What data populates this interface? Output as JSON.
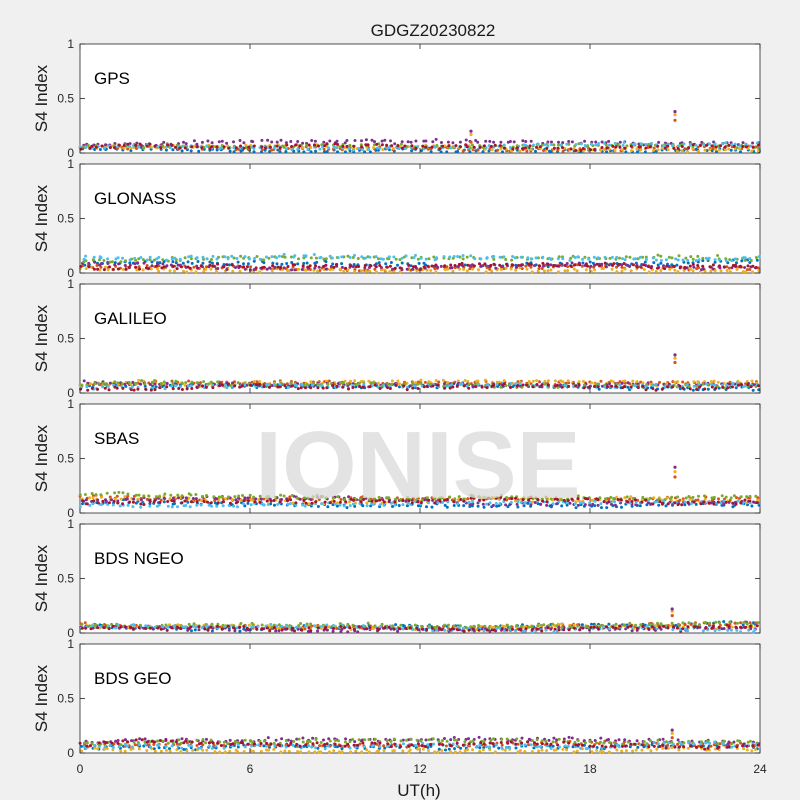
{
  "figure": {
    "title": "GDGZ20230822",
    "watermark": "IONISE",
    "background": "#f0f0f0",
    "axes_background": "#ffffff"
  },
  "chart_data": {
    "type": "scatter",
    "title": "GDGZ20230822",
    "xlabel": "UT(h)",
    "ylabel": "S4 Index",
    "xlim": [
      0,
      24
    ],
    "ylim": [
      0,
      1
    ],
    "xticks": [
      "0",
      "6",
      "12",
      "18",
      "24"
    ],
    "yticks": [
      "0",
      "0.5",
      "1"
    ],
    "grid": false,
    "series_colors": [
      "#0072BD",
      "#D95319",
      "#EDB120",
      "#7E2F8E",
      "#77AC30",
      "#4DBEEE",
      "#A2142F"
    ],
    "panels": [
      {
        "label": "GPS",
        "baseline": [
          0.04,
          0.06,
          0.05,
          0.08,
          0.07,
          0.06,
          0.05
        ],
        "notes": [
          {
            "x": 13.8,
            "values": [
              0.1,
              0.17,
              0.2
            ]
          },
          {
            "x": 21.0,
            "values": [
              0.3,
              0.35,
              0.38
            ]
          }
        ]
      },
      {
        "label": "GLONASS",
        "baseline": [
          0.08,
          0.06,
          0.05,
          0.07,
          0.12,
          0.14,
          0.05
        ],
        "notes": []
      },
      {
        "label": "GALILEO",
        "baseline": [
          0.06,
          0.07,
          0.08,
          0.1,
          0.08,
          0.05,
          0.04
        ],
        "notes": [
          {
            "x": 21.0,
            "values": [
              0.28,
              0.32,
              0.35
            ]
          }
        ]
      },
      {
        "label": "SBAS",
        "baseline": [
          0.09,
          0.15,
          0.13,
          0.11,
          0.16,
          0.07,
          0.1
        ],
        "notes": [
          {
            "x": 21.0,
            "values": [
              0.33,
              0.38,
              0.42
            ]
          }
        ]
      },
      {
        "label": "BDS NGEO",
        "baseline": [
          0.06,
          0.08,
          0.06,
          0.05,
          0.07,
          0.04,
          0.05
        ],
        "notes": [
          {
            "x": 20.9,
            "values": [
              0.16,
              0.2,
              0.22
            ]
          }
        ]
      },
      {
        "label": "BDS GEO",
        "baseline": [
          0.05,
          0.07,
          0.03,
          0.1,
          0.09,
          0.06,
          0.08
        ],
        "notes": [
          {
            "x": 20.9,
            "values": [
              0.14,
              0.18,
              0.21
            ]
          }
        ]
      }
    ]
  }
}
